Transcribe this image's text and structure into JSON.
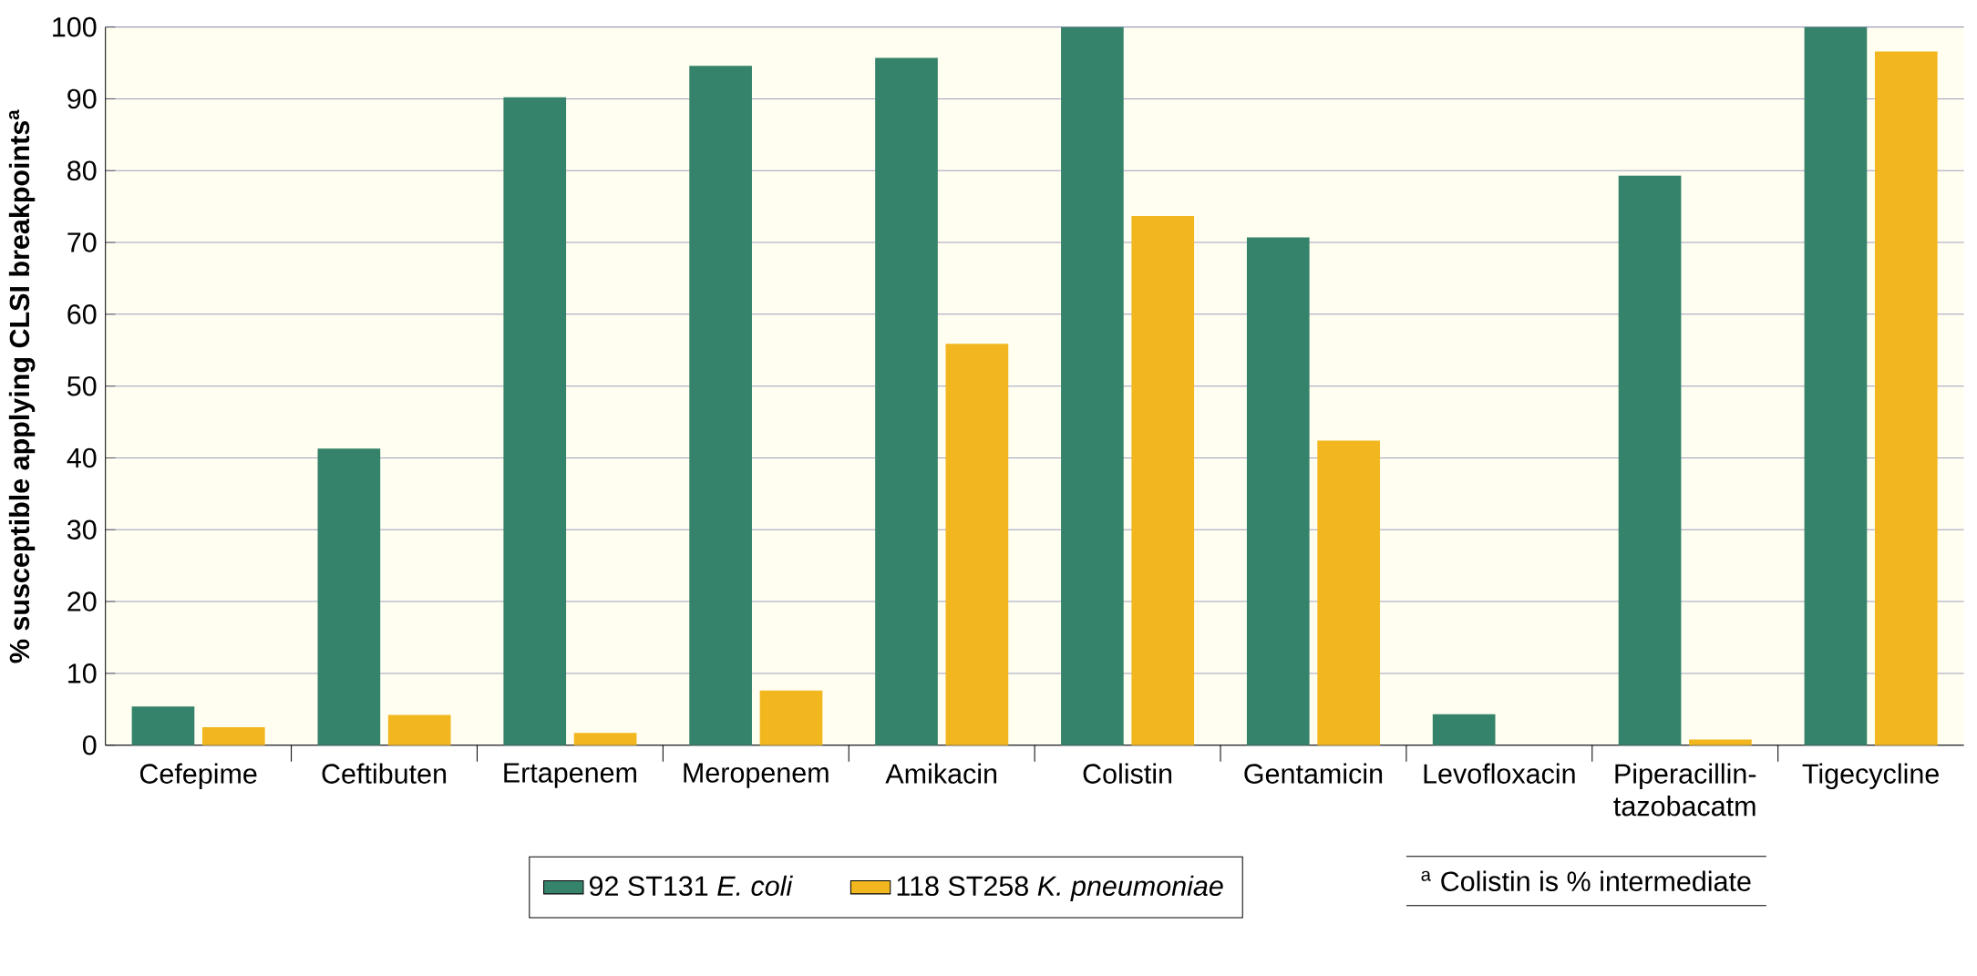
{
  "chart_data": {
    "type": "bar",
    "ylabel": "% susceptible applying CLSI breakpoints$^{a}$",
    "categories": [
      "Cefepime",
      "Ceftibuten",
      "Ertapenem",
      "Meropenem",
      "Amikacin",
      "Colistin",
      "Gentamicin",
      "Levofloxacin",
      "Piperacillin-tazobacatm",
      "Tigecycline"
    ],
    "series": [
      {
        "name": "92 ST131 *E. coli*",
        "color": "#36836b",
        "values": [
          5.4,
          41.3,
          90.2,
          94.6,
          95.7,
          100,
          70.7,
          4.3,
          79.3,
          100
        ]
      },
      {
        "name": "118 ST258 *K. pneumoniae*",
        "color": "#f2b71f",
        "values": [
          2.5,
          4.2,
          1.7,
          7.6,
          55.9,
          73.7,
          42.4,
          0,
          0.8,
          96.6
        ]
      }
    ],
    "ylim": [
      0,
      100
    ],
    "yticks": [
      0,
      10,
      20,
      30,
      40,
      50,
      60,
      70,
      80,
      90,
      100
    ],
    "grid": "y",
    "legend": "bottom",
    "annotations": [
      "$^{a}$ Colistin is % intermediate"
    ]
  }
}
